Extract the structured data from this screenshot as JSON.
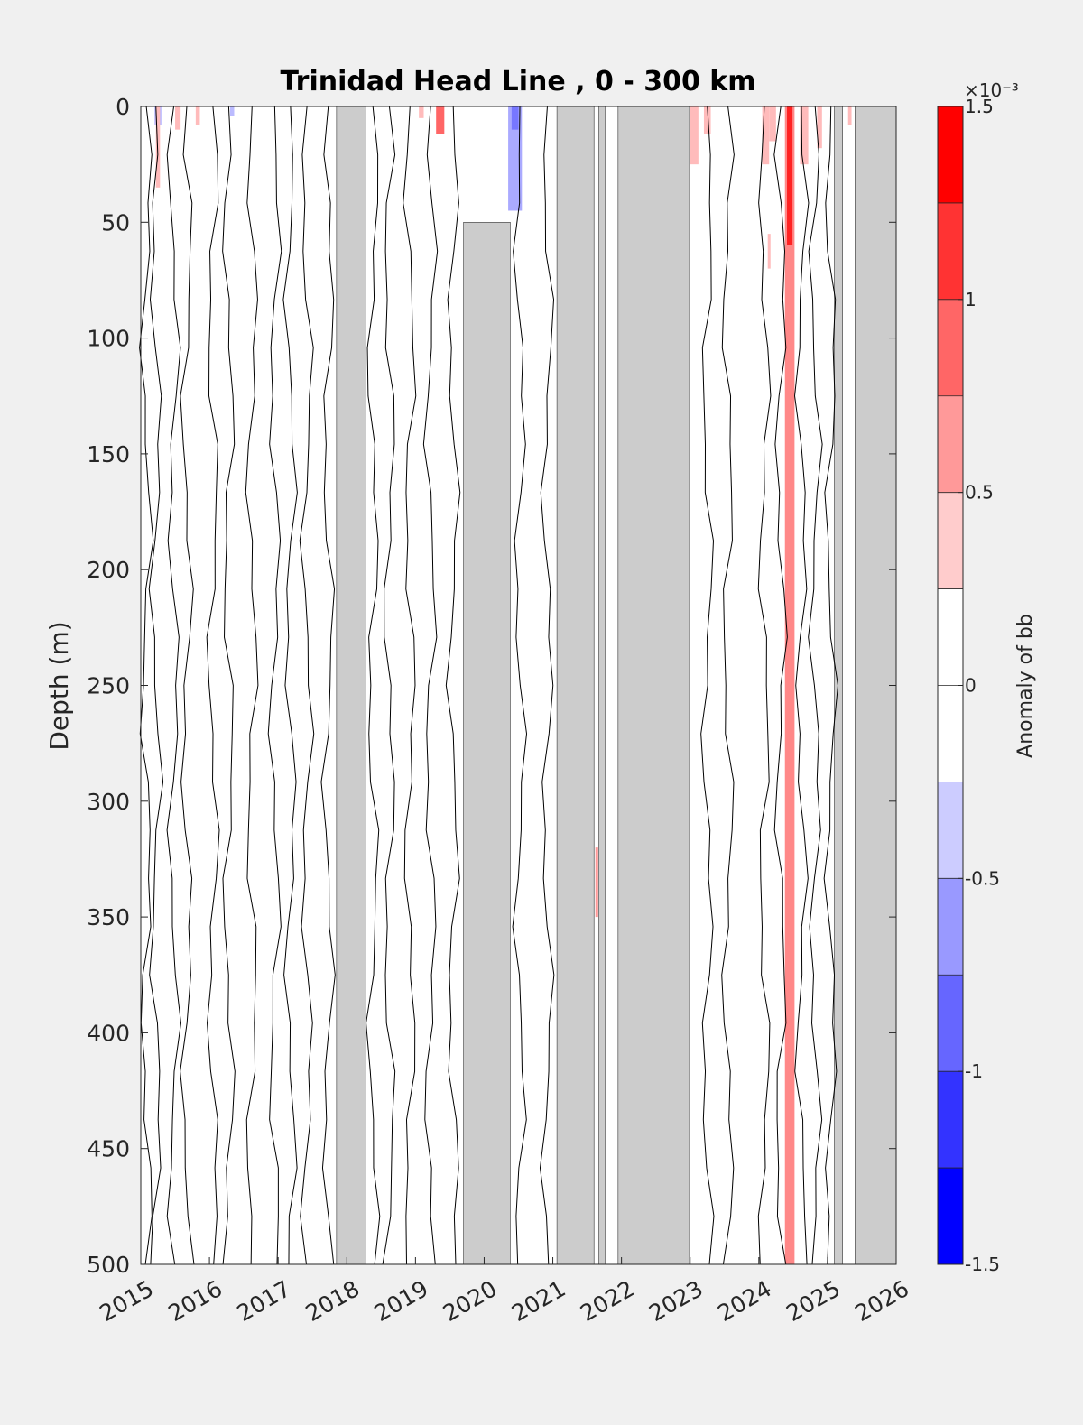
{
  "chart_data": {
    "type": "heatmap",
    "title": "Trinidad Head Line , 0 - 300 km",
    "xlabel": "",
    "ylabel": "Depth (m)",
    "xlim": [
      2015,
      2026
    ],
    "ylim": [
      500,
      0
    ],
    "y_reversed": true,
    "x_ticks": [
      "2015",
      "2016",
      "2017",
      "2018",
      "2019",
      "2020",
      "2021",
      "2022",
      "2023",
      "2024",
      "2025",
      "2026"
    ],
    "y_ticks": [
      "0",
      "50",
      "100",
      "150",
      "200",
      "250",
      "300",
      "350",
      "400",
      "450",
      "500"
    ],
    "colorbar": {
      "label": "Anomaly of bb",
      "exponent_label": "×10⁻³",
      "range": [
        -1.5,
        1.5
      ],
      "tick_labels": [
        "1.5",
        "1",
        "0.5",
        "0",
        "-0.5",
        "-1",
        "-1.5"
      ],
      "colors_top_to_bottom": [
        "#ff0000",
        "#ff3333",
        "#ff6666",
        "#ff9999",
        "#ffcccc",
        "#ffffff",
        "#ffffff",
        "#ccccff",
        "#9999ff",
        "#6666ff",
        "#3333ff",
        "#0000ff"
      ]
    },
    "missing_data_color": "#cccccc",
    "missing_data_periods": [
      {
        "from": 2017.85,
        "to": 2018.28,
        "depth_from": 0,
        "depth_to": 500
      },
      {
        "from": 2019.7,
        "to": 2020.38,
        "depth_from": 50,
        "depth_to": 500
      },
      {
        "from": 2021.06,
        "to": 2021.6,
        "depth_from": 0,
        "depth_to": 500
      },
      {
        "from": 2021.67,
        "to": 2021.76,
        "depth_from": 0,
        "depth_to": 500
      },
      {
        "from": 2021.95,
        "to": 2022.99,
        "depth_from": 0,
        "depth_to": 500
      },
      {
        "from": 2025.1,
        "to": 2025.22,
        "depth_from": 0,
        "depth_to": 500
      },
      {
        "from": 2025.4,
        "to": 2026.0,
        "depth_from": 0,
        "depth_to": 500
      }
    ],
    "anomaly_features": [
      {
        "x_from": 2024.38,
        "x_to": 2024.52,
        "depth_from": 0,
        "depth_to": 500,
        "value": 0.7
      },
      {
        "x_from": 2024.41,
        "x_to": 2024.49,
        "depth_from": 0,
        "depth_to": 60,
        "value": 1.3
      },
      {
        "x_from": 2019.3,
        "x_to": 2019.42,
        "depth_from": 0,
        "depth_to": 12,
        "value": 0.9
      },
      {
        "x_from": 2020.35,
        "x_to": 2020.55,
        "depth_from": 0,
        "depth_to": 45,
        "value": -0.5
      },
      {
        "x_from": 2020.4,
        "x_to": 2020.5,
        "depth_from": 0,
        "depth_to": 10,
        "value": -0.8
      },
      {
        "x_from": 2015.2,
        "x_to": 2015.3,
        "depth_from": 0,
        "depth_to": 8,
        "value": -0.4
      },
      {
        "x_from": 2016.3,
        "x_to": 2016.36,
        "depth_from": 0,
        "depth_to": 4,
        "value": -0.4
      },
      {
        "x_from": 2015.22,
        "x_to": 2015.28,
        "depth_from": 0,
        "depth_to": 35,
        "value": 0.4
      },
      {
        "x_from": 2015.5,
        "x_to": 2015.58,
        "depth_from": 0,
        "depth_to": 10,
        "value": 0.4
      },
      {
        "x_from": 2015.8,
        "x_to": 2015.86,
        "depth_from": 0,
        "depth_to": 8,
        "value": 0.4
      },
      {
        "x_from": 2019.05,
        "x_to": 2019.12,
        "depth_from": 0,
        "depth_to": 5,
        "value": 0.4
      },
      {
        "x_from": 2021.62,
        "x_to": 2021.66,
        "depth_from": 320,
        "depth_to": 350,
        "value": 0.6
      },
      {
        "x_from": 2023.0,
        "x_to": 2023.12,
        "depth_from": 0,
        "depth_to": 25,
        "value": 0.4
      },
      {
        "x_from": 2023.2,
        "x_to": 2023.3,
        "depth_from": 0,
        "depth_to": 12,
        "value": 0.4
      },
      {
        "x_from": 2024.05,
        "x_to": 2024.15,
        "depth_from": 0,
        "depth_to": 25,
        "value": 0.4
      },
      {
        "x_from": 2024.15,
        "x_to": 2024.25,
        "depth_from": 0,
        "depth_to": 15,
        "value": 0.4
      },
      {
        "x_from": 2024.6,
        "x_to": 2024.72,
        "depth_from": 0,
        "depth_to": 25,
        "value": 0.4
      },
      {
        "x_from": 2024.85,
        "x_to": 2024.92,
        "depth_from": 0,
        "depth_to": 18,
        "value": 0.4
      },
      {
        "x_from": 2024.13,
        "x_to": 2024.17,
        "depth_from": 55,
        "depth_to": 70,
        "value": 0.4
      },
      {
        "x_from": 2025.15,
        "x_to": 2025.2,
        "depth_from": 0,
        "depth_to": 10,
        "value": 0.4
      },
      {
        "x_from": 2025.3,
        "x_to": 2025.35,
        "depth_from": 0,
        "depth_to": 8,
        "value": 0.4
      }
    ],
    "zero_contour_x": [
      2015.08,
      2015.22,
      2015.48,
      2015.67,
      2016.05,
      2016.28,
      2016.62,
      2016.95,
      2017.18,
      2017.42,
      2017.73,
      2018.38,
      2018.62,
      2018.92,
      2019.22,
      2019.55,
      2020.52,
      2020.92,
      2023.25,
      2023.55,
      2024.08,
      2024.32,
      2024.62,
      2024.82,
      2025.05
    ]
  }
}
